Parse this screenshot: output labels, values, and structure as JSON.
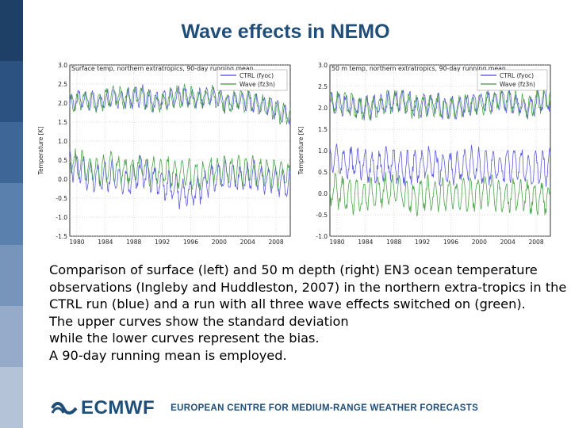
{
  "title": "Wave effects in NEMO",
  "colors": {
    "sidebar": [
      "#1e3f66",
      "#2b5281",
      "#3e6797",
      "#5a80ad",
      "#7795bb",
      "#95abc9",
      "#b4c3d8"
    ],
    "title": "#1f4e79",
    "ctrl": "#4a4ad8",
    "wave": "#3a9a3a"
  },
  "chart_data": [
    {
      "type": "line",
      "title": "Surface temp, northern extratropics, 90-day running mean",
      "xlabel": "",
      "ylabel": "Temperature [K]",
      "xlim": [
        1979,
        2010
      ],
      "ylim": [
        -1.5,
        3.0
      ],
      "xticks": [
        "1980",
        "1984",
        "1988",
        "1992",
        "1996",
        "2000",
        "2004",
        "2008"
      ],
      "yticks": [
        "3.0",
        "2.5",
        "2.0",
        "1.5",
        "1.0",
        "0.5",
        "0.0",
        "-0.5",
        "-1.0",
        "-1.5"
      ],
      "legend": "top-right",
      "grid": true,
      "series": [
        {
          "name": "CTRL (fyoc)",
          "group": "std",
          "x": [
            1979,
            1981,
            1983,
            1985,
            1987,
            1989,
            1991,
            1993,
            1995,
            1997,
            1999,
            2001,
            2003,
            2005,
            2007,
            2009
          ],
          "y": [
            2.0,
            2.1,
            2.0,
            2.2,
            2.1,
            2.2,
            2.0,
            2.1,
            2.2,
            2.1,
            2.2,
            2.0,
            2.1,
            2.0,
            1.9,
            1.7
          ]
        },
        {
          "name": "Wave (fz3n)",
          "group": "std",
          "x": [
            1979,
            1981,
            1983,
            1985,
            1987,
            1989,
            1991,
            1993,
            1995,
            1997,
            1999,
            2001,
            2003,
            2005,
            2007,
            2009
          ],
          "y": [
            2.0,
            2.1,
            2.0,
            2.2,
            2.1,
            2.2,
            2.0,
            2.1,
            2.2,
            2.1,
            2.2,
            2.0,
            2.1,
            2.0,
            1.9,
            1.7
          ]
        },
        {
          "name": "CTRL (fyoc)",
          "group": "bias",
          "x": [
            1979,
            1981,
            1983,
            1985,
            1987,
            1989,
            1991,
            1993,
            1995,
            1997,
            1999,
            2001,
            2003,
            2005,
            2007,
            2009
          ],
          "y": [
            0.4,
            0.2,
            0.0,
            0.1,
            -0.1,
            0.2,
            0.0,
            -0.2,
            -0.4,
            -0.3,
            0.0,
            0.1,
            0.0,
            0.1,
            0.0,
            -0.1
          ]
        },
        {
          "name": "Wave (fz3n)",
          "group": "bias",
          "x": [
            1979,
            1981,
            1983,
            1985,
            1987,
            1989,
            1991,
            1993,
            1995,
            1997,
            1999,
            2001,
            2003,
            2005,
            2007,
            2009
          ],
          "y": [
            0.5,
            0.3,
            0.2,
            0.3,
            0.2,
            0.3,
            0.2,
            0.2,
            0.1,
            0.1,
            0.2,
            0.3,
            0.2,
            0.2,
            0.2,
            0.1
          ]
        }
      ]
    },
    {
      "type": "line",
      "title": "50 m temp, northern extratropics, 90-day running mean",
      "xlabel": "",
      "ylabel": "Temperature [K]",
      "xlim": [
        1979,
        2010
      ],
      "ylim": [
        -1.0,
        3.0
      ],
      "xticks": [
        "1980",
        "1984",
        "1988",
        "1992",
        "1996",
        "2000",
        "2004",
        "2008"
      ],
      "yticks": [
        "3.0",
        "2.5",
        "2.0",
        "1.5",
        "1.0",
        "0.5",
        "0.0",
        "-0.5",
        "-1.0"
      ],
      "legend": "top-right",
      "grid": true,
      "series": [
        {
          "name": "CTRL (fyoc)",
          "group": "std",
          "x": [
            1979,
            1981,
            1983,
            1985,
            1987,
            1989,
            1991,
            1993,
            1995,
            1997,
            1999,
            2001,
            2003,
            2005,
            2007,
            2009
          ],
          "y": [
            2.1,
            2.1,
            2.0,
            2.0,
            2.1,
            2.2,
            2.0,
            2.1,
            2.0,
            2.0,
            2.1,
            2.1,
            2.2,
            2.1,
            2.0,
            2.2
          ]
        },
        {
          "name": "Wave (fz3n)",
          "group": "std",
          "x": [
            1979,
            1981,
            1983,
            1985,
            1987,
            1989,
            1991,
            1993,
            1995,
            1997,
            1999,
            2001,
            2003,
            2005,
            2007,
            2009
          ],
          "y": [
            2.1,
            2.1,
            2.0,
            2.0,
            2.1,
            2.2,
            2.0,
            2.1,
            2.0,
            2.0,
            2.1,
            2.1,
            2.2,
            2.1,
            2.0,
            2.2
          ]
        },
        {
          "name": "CTRL (fyoc)",
          "group": "bias",
          "x": [
            1979,
            1981,
            1983,
            1985,
            1987,
            1989,
            1991,
            1993,
            1995,
            1997,
            1999,
            2001,
            2003,
            2005,
            2007,
            2009
          ],
          "y": [
            0.9,
            0.7,
            0.7,
            0.6,
            0.7,
            0.6,
            0.6,
            0.7,
            0.6,
            0.6,
            0.7,
            0.6,
            0.6,
            0.7,
            0.6,
            0.6
          ]
        },
        {
          "name": "Wave (fz3n)",
          "group": "bias",
          "x": [
            1979,
            1981,
            1983,
            1985,
            1987,
            1989,
            1991,
            1993,
            1995,
            1997,
            1999,
            2001,
            2003,
            2005,
            2007,
            2009
          ],
          "y": [
            0.1,
            0.0,
            -0.1,
            0.0,
            0.1,
            0.0,
            -0.1,
            0.0,
            0.0,
            -0.1,
            0.0,
            0.1,
            -0.1,
            0.0,
            -0.1,
            -0.1
          ]
        }
      ]
    }
  ],
  "caption": {
    "lines": [
      "Comparison of surface (left) and 50 m depth (right) EN3 ocean temperature",
      "observations (Ingleby and Huddleston, 2007) in the northern extra-tropics in the",
      "CTRL run (blue) and a run with all three wave effects switched on (green).",
      "The upper curves show the standard deviation",
      "while the lower curves represent the bias.",
      "A 90-day running mean is employed."
    ]
  },
  "footer": {
    "logo_text": "ECMWF",
    "tagline": "EUROPEAN CENTRE FOR MEDIUM-RANGE WEATHER FORECASTS"
  }
}
